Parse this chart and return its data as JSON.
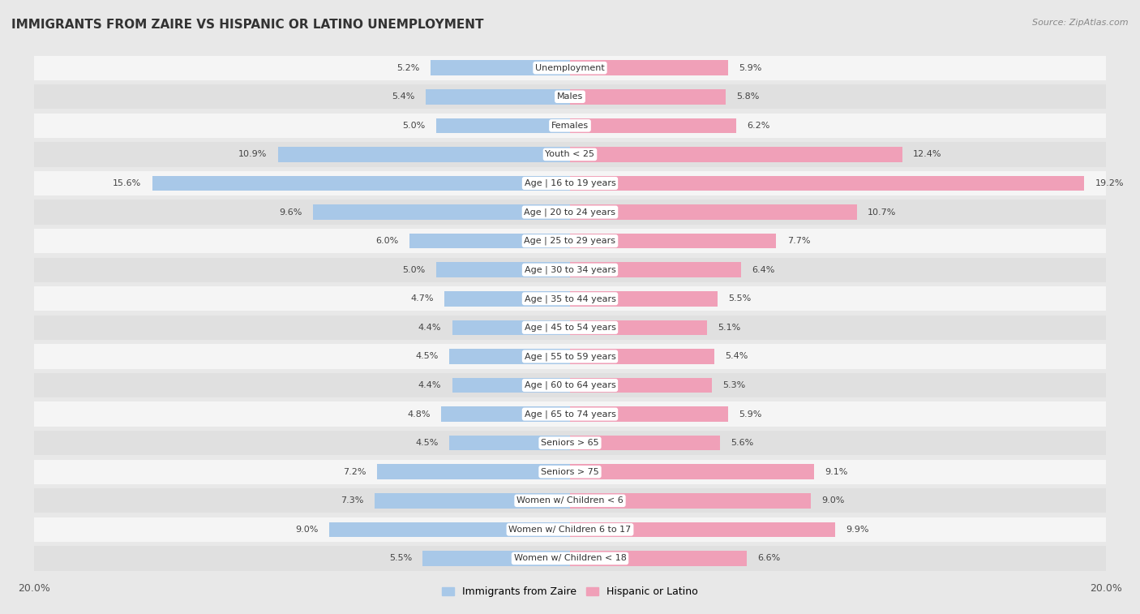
{
  "title": "IMMIGRANTS FROM ZAIRE VS HISPANIC OR LATINO UNEMPLOYMENT",
  "source": "Source: ZipAtlas.com",
  "categories": [
    "Unemployment",
    "Males",
    "Females",
    "Youth < 25",
    "Age | 16 to 19 years",
    "Age | 20 to 24 years",
    "Age | 25 to 29 years",
    "Age | 30 to 34 years",
    "Age | 35 to 44 years",
    "Age | 45 to 54 years",
    "Age | 55 to 59 years",
    "Age | 60 to 64 years",
    "Age | 65 to 74 years",
    "Seniors > 65",
    "Seniors > 75",
    "Women w/ Children < 6",
    "Women w/ Children 6 to 17",
    "Women w/ Children < 18"
  ],
  "zaire_values": [
    5.2,
    5.4,
    5.0,
    10.9,
    15.6,
    9.6,
    6.0,
    5.0,
    4.7,
    4.4,
    4.5,
    4.4,
    4.8,
    4.5,
    7.2,
    7.3,
    9.0,
    5.5
  ],
  "hispanic_values": [
    5.9,
    5.8,
    6.2,
    12.4,
    19.2,
    10.7,
    7.7,
    6.4,
    5.5,
    5.1,
    5.4,
    5.3,
    5.9,
    5.6,
    9.1,
    9.0,
    9.9,
    6.6
  ],
  "zaire_color": "#a8c8e8",
  "hispanic_color": "#f0a0b8",
  "background_color": "#e8e8e8",
  "row_color_odd": "#f5f5f5",
  "row_color_even": "#e0e0e0",
  "axis_limit": 20.0,
  "label_fontsize": 8.0,
  "value_fontsize": 8.0,
  "title_fontsize": 11,
  "legend_label_zaire": "Immigrants from Zaire",
  "legend_label_hispanic": "Hispanic or Latino"
}
